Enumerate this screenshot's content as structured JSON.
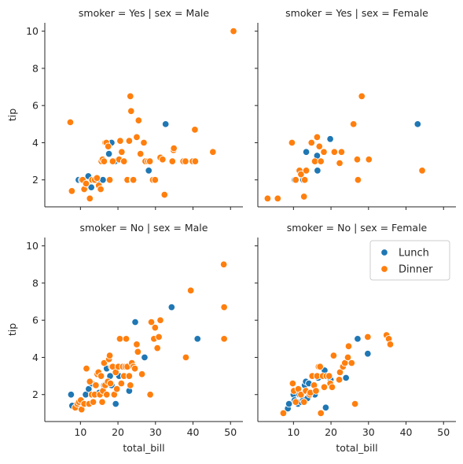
{
  "chart_data": {
    "type": "scatter",
    "xlabel": "total_bill",
    "ylabel": "tip",
    "xlim": [
      0.5,
      53.3
    ],
    "ylim": [
      0.55,
      10.45
    ],
    "xticks": [
      10,
      20,
      30,
      40,
      50
    ],
    "yticks": [
      2,
      4,
      6,
      8,
      10
    ],
    "grid": false,
    "legend": {
      "placement": "top-right of bottom-right panel",
      "entries": [
        {
          "label": "Lunch",
          "color": "#1f77b4"
        },
        {
          "label": "Dinner",
          "color": "#ff7f0e"
        }
      ]
    },
    "panels": [
      {
        "title": "smoker = Yes | sex = Male",
        "series": [
          {
            "name": "Lunch",
            "color": "#1f77b4",
            "points": [
              [
                9.5,
                2.0
              ],
              [
                10.3,
                2.0
              ],
              [
                11.4,
                1.6
              ],
              [
                12.1,
                2.2
              ],
              [
                12.9,
                1.6
              ],
              [
                13.4,
                2.0
              ],
              [
                15.1,
                1.9
              ],
              [
                16.0,
                2.0
              ],
              [
                17.6,
                3.4
              ],
              [
                18.3,
                4.0
              ],
              [
                19.2,
                3.0
              ],
              [
                28.2,
                2.5
              ],
              [
                32.7,
                5.0
              ]
            ]
          },
          {
            "name": "Dinner",
            "color": "#ff7f0e",
            "points": [
              [
                7.3,
                5.1
              ],
              [
                7.7,
                1.4
              ],
              [
                10.6,
                2.0
              ],
              [
                11.0,
                1.5
              ],
              [
                11.5,
                1.8
              ],
              [
                12.5,
                1.0
              ],
              [
                13.1,
                2.0
              ],
              [
                13.8,
                2.0
              ],
              [
                14.4,
                2.1
              ],
              [
                14.9,
                1.7
              ],
              [
                15.4,
                1.5
              ],
              [
                15.6,
                3.0
              ],
              [
                15.9,
                3.1
              ],
              [
                16.3,
                3.0
              ],
              [
                16.6,
                4.0
              ],
              [
                16.9,
                4.0
              ],
              [
                17.4,
                3.8
              ],
              [
                17.8,
                2.0
              ],
              [
                18.6,
                3.0
              ],
              [
                20.3,
                3.1
              ],
              [
                20.6,
                4.1
              ],
              [
                21.0,
                3.5
              ],
              [
                21.6,
                3.0
              ],
              [
                22.5,
                2.0
              ],
              [
                23.0,
                4.1
              ],
              [
                23.3,
                6.5
              ],
              [
                23.5,
                5.7
              ],
              [
                23.9,
                2.0
              ],
              [
                24.1,
                2.0
              ],
              [
                25.0,
                4.3
              ],
              [
                25.5,
                5.2
              ],
              [
                26.0,
                3.4
              ],
              [
                26.9,
                4.0
              ],
              [
                27.3,
                3.0
              ],
              [
                28.0,
                3.0
              ],
              [
                28.5,
                3.0
              ],
              [
                29.3,
                2.0
              ],
              [
                29.9,
                2.0
              ],
              [
                31.3,
                3.2
              ],
              [
                31.9,
                3.1
              ],
              [
                32.4,
                1.2
              ],
              [
                34.5,
                3.0
              ],
              [
                34.8,
                3.6
              ],
              [
                34.9,
                3.7
              ],
              [
                37.4,
                3.0
              ],
              [
                38.0,
                3.0
              ],
              [
                39.9,
                3.0
              ],
              [
                40.5,
                4.7
              ],
              [
                40.6,
                3.0
              ],
              [
                45.3,
                3.5
              ],
              [
                50.8,
                10.0
              ]
            ]
          }
        ]
      },
      {
        "title": "smoker = Yes | sex = Female",
        "series": [
          {
            "name": "Lunch",
            "color": "#1f77b4",
            "points": [
              [
                10.3,
                2.0
              ],
              [
                12.6,
                2.0
              ],
              [
                13.4,
                3.5
              ],
              [
                16.3,
                3.3
              ],
              [
                16.4,
                2.5
              ],
              [
                19.8,
                4.2
              ],
              [
                43.1,
                5.0
              ]
            ]
          },
          {
            "name": "Dinner",
            "color": "#ff7f0e",
            "points": [
              [
                3.1,
                1.0
              ],
              [
                5.8,
                1.0
              ],
              [
                9.6,
                4.0
              ],
              [
                10.6,
                2.0
              ],
              [
                11.6,
                2.5
              ],
              [
                12.0,
                2.3
              ],
              [
                12.8,
                1.1
              ],
              [
                13.0,
                2.0
              ],
              [
                13.4,
                2.5
              ],
              [
                14.8,
                4.0
              ],
              [
                15.7,
                3.0
              ],
              [
                16.3,
                4.3
              ],
              [
                16.9,
                3.8
              ],
              [
                17.3,
                3.0
              ],
              [
                18.1,
                3.5
              ],
              [
                20.9,
                3.5
              ],
              [
                22.3,
                2.9
              ],
              [
                22.8,
                3.5
              ],
              [
                26.0,
                5.0
              ],
              [
                27.0,
                3.1
              ],
              [
                27.2,
                2.0
              ],
              [
                28.2,
                6.5
              ],
              [
                30.1,
                3.1
              ],
              [
                44.3,
                2.5
              ]
            ]
          }
        ]
      },
      {
        "title": "smoker = No | sex = Male",
        "series": [
          {
            "name": "Lunch",
            "color": "#1f77b4",
            "points": [
              [
                7.5,
                2.0
              ],
              [
                7.8,
                1.4
              ],
              [
                9.7,
                1.4
              ],
              [
                11.4,
                2.0
              ],
              [
                12.2,
                2.3
              ],
              [
                13.0,
                2.6
              ],
              [
                13.9,
                2.0
              ],
              [
                15.0,
                2.1
              ],
              [
                16.3,
                2.5
              ],
              [
                17.0,
                3.4
              ],
              [
                17.9,
                3.0
              ],
              [
                18.3,
                2.5
              ],
              [
                19.4,
                1.5
              ],
              [
                20.3,
                3.0
              ],
              [
                21.2,
                3.5
              ],
              [
                22.8,
                3.0
              ],
              [
                23.0,
                2.2
              ],
              [
                24.6,
                5.9
              ],
              [
                27.1,
                4.0
              ],
              [
                34.3,
                6.7
              ],
              [
                41.2,
                5.0
              ]
            ]
          },
          {
            "name": "Dinner",
            "color": "#ff7f0e",
            "points": [
              [
                8.6,
                1.3
              ],
              [
                9.2,
                1.5
              ],
              [
                9.6,
                1.6
              ],
              [
                10.1,
                1.7
              ],
              [
                10.3,
                1.2
              ],
              [
                11.0,
                1.5
              ],
              [
                11.6,
                3.4
              ],
              [
                12.3,
                1.5
              ],
              [
                12.5,
                2.7
              ],
              [
                13.0,
                2.0
              ],
              [
                13.4,
                1.6
              ],
              [
                13.8,
                2.0
              ],
              [
                14.1,
                2.5
              ],
              [
                14.5,
                3.1
              ],
              [
                14.8,
                3.2
              ],
              [
                15.2,
                2.0
              ],
              [
                15.5,
                3.0
              ],
              [
                15.8,
                1.6
              ],
              [
                16.0,
                2.2
              ],
              [
                16.3,
                3.7
              ],
              [
                16.6,
                2.5
              ],
              [
                17.0,
                2.0
              ],
              [
                17.3,
                2.7
              ],
              [
                17.6,
                3.9
              ],
              [
                17.8,
                4.1
              ],
              [
                18.0,
                2.6
              ],
              [
                18.3,
                3.5
              ],
              [
                18.6,
                3.5
              ],
              [
                19.0,
                2.0
              ],
              [
                19.4,
                3.2
              ],
              [
                19.7,
                2.3
              ],
              [
                20.1,
                3.5
              ],
              [
                20.5,
                5.0
              ],
              [
                20.9,
                2.6
              ],
              [
                21.3,
                3.5
              ],
              [
                21.6,
                3.0
              ],
              [
                22.0,
                3.5
              ],
              [
                22.2,
                5.0
              ],
              [
                22.5,
                3.5
              ],
              [
                23.0,
                3.0
              ],
              [
                23.3,
                2.5
              ],
              [
                23.7,
                3.7
              ],
              [
                24.1,
                3.5
              ],
              [
                24.5,
                3.4
              ],
              [
                25.0,
                4.7
              ],
              [
                25.3,
                4.3
              ],
              [
                26.4,
                3.1
              ],
              [
                28.6,
                2.0
              ],
              [
                28.9,
                5.9
              ],
              [
                29.6,
                5.0
              ],
              [
                29.9,
                5.6
              ],
              [
                30.5,
                4.5
              ],
              [
                30.9,
                5.1
              ],
              [
                31.3,
                6.0
              ],
              [
                38.1,
                4.0
              ],
              [
                39.4,
                7.6
              ],
              [
                48.2,
                9.0
              ],
              [
                48.3,
                6.7
              ],
              [
                48.3,
                5.0
              ]
            ]
          }
        ]
      },
      {
        "title": "smoker = No | sex = Female",
        "series": [
          {
            "name": "Lunch",
            "color": "#1f77b4",
            "points": [
              [
                8.5,
                1.25
              ],
              [
                8.8,
                1.5
              ],
              [
                10.0,
                2.0
              ],
              [
                10.3,
                1.7
              ],
              [
                11.0,
                1.6
              ],
              [
                11.2,
                1.5
              ],
              [
                11.6,
                2.0
              ],
              [
                12.0,
                1.6
              ],
              [
                12.6,
                1.7
              ],
              [
                13.0,
                2.5
              ],
              [
                13.3,
                2.7
              ],
              [
                13.7,
                1.8
              ],
              [
                14.1,
                2.6
              ],
              [
                14.8,
                2.0
              ],
              [
                15.4,
                2.0
              ],
              [
                15.7,
                2.0
              ],
              [
                16.6,
                2.9
              ],
              [
                18.3,
                3.3
              ],
              [
                18.6,
                1.3
              ],
              [
                19.9,
                2.8
              ],
              [
                24.0,
                2.9
              ],
              [
                27.1,
                5.0
              ],
              [
                29.8,
                4.2
              ]
            ]
          },
          {
            "name": "Dinner",
            "color": "#ff7f0e",
            "points": [
              [
                7.3,
                1.0
              ],
              [
                9.8,
                2.6
              ],
              [
                10.1,
                2.2
              ],
              [
                10.6,
                1.6
              ],
              [
                11.3,
                2.3
              ],
              [
                12.0,
                2.0
              ],
              [
                12.8,
                1.6
              ],
              [
                13.3,
                2.2
              ],
              [
                14.3,
                2.0
              ],
              [
                14.5,
                2.1
              ],
              [
                15.0,
                3.0
              ],
              [
                15.5,
                2.5
              ],
              [
                16.0,
                2.2
              ],
              [
                16.3,
                3.0
              ],
              [
                16.7,
                3.5
              ],
              [
                17.1,
                3.5
              ],
              [
                17.3,
                1.0
              ],
              [
                17.8,
                3.0
              ],
              [
                18.2,
                2.4
              ],
              [
                18.8,
                3.0
              ],
              [
                19.5,
                3.0
              ],
              [
                19.8,
                2.6
              ],
              [
                20.3,
                2.4
              ],
              [
                20.7,
                4.1
              ],
              [
                22.2,
                2.8
              ],
              [
                22.4,
                3.2
              ],
              [
                23.2,
                3.5
              ],
              [
                23.7,
                3.7
              ],
              [
                24.5,
                4.0
              ],
              [
                24.7,
                4.6
              ],
              [
                25.5,
                3.7
              ],
              [
                26.4,
                1.5
              ],
              [
                29.8,
                5.1
              ],
              [
                34.8,
                5.2
              ],
              [
                35.4,
                5.0
              ],
              [
                35.8,
                4.7
              ]
            ]
          }
        ]
      }
    ]
  }
}
